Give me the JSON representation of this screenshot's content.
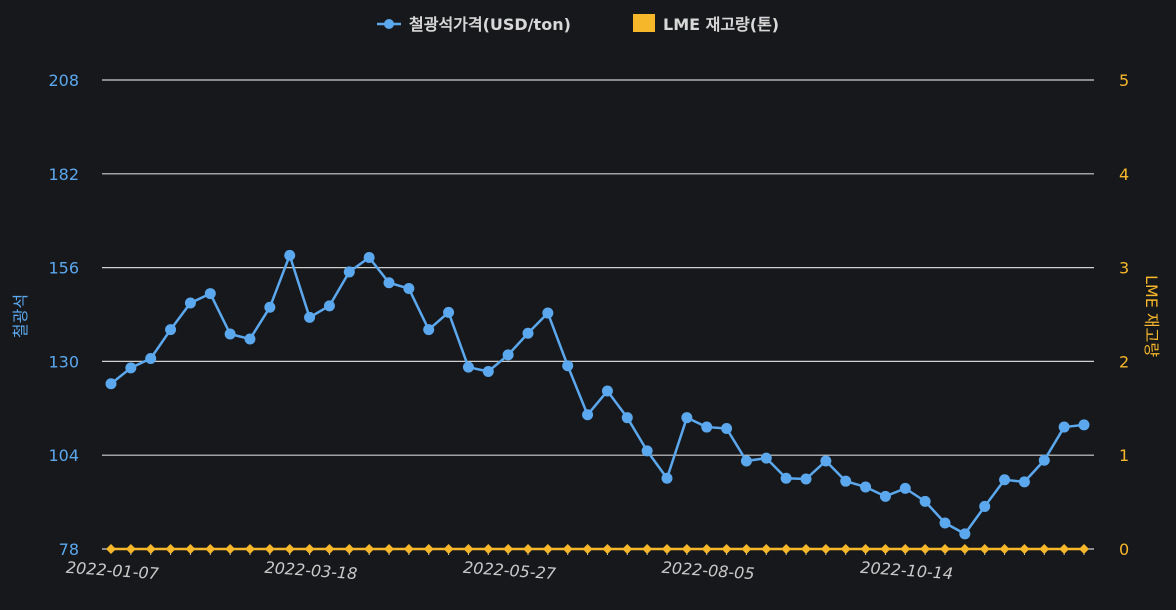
{
  "colors": {
    "background": "#17181b",
    "price_line": "#5ba8ee",
    "stock_line": "#f7b72b",
    "grid": "#d0d0d0",
    "x_tick": "#c9c9c9"
  },
  "chart_data": {
    "type": "line",
    "legend_position": "top-center",
    "grid": true,
    "y_left": {
      "label": "철광석",
      "ticks": [
        78,
        104,
        130,
        156,
        182,
        208
      ],
      "range": [
        78,
        208
      ]
    },
    "y_right": {
      "label": "LME 재고량",
      "ticks": [
        0,
        1,
        2,
        3,
        4,
        5
      ],
      "range": [
        0,
        5
      ]
    },
    "x_tick_labels": [
      "2022-01-07",
      "2022-03-18",
      "2022-05-27",
      "2022-08-05",
      "2022-10-14"
    ],
    "x": [
      "2022-01-07",
      "2022-01-14",
      "2022-01-21",
      "2022-01-28",
      "2022-02-04",
      "2022-02-11",
      "2022-02-18",
      "2022-02-25",
      "2022-03-04",
      "2022-03-11",
      "2022-03-18",
      "2022-03-25",
      "2022-04-01",
      "2022-04-08",
      "2022-04-15",
      "2022-04-22",
      "2022-04-29",
      "2022-05-06",
      "2022-05-13",
      "2022-05-20",
      "2022-05-27",
      "2022-06-03",
      "2022-06-10",
      "2022-06-17",
      "2022-06-24",
      "2022-07-01",
      "2022-07-08",
      "2022-07-15",
      "2022-07-22",
      "2022-07-29",
      "2022-08-05",
      "2022-08-12",
      "2022-08-19",
      "2022-08-26",
      "2022-09-02",
      "2022-09-09",
      "2022-09-16",
      "2022-09-23",
      "2022-09-30",
      "2022-10-07",
      "2022-10-14",
      "2022-10-21",
      "2022-10-28",
      "2022-11-04",
      "2022-11-11",
      "2022-11-18",
      "2022-11-25",
      "2022-12-02",
      "2022-12-09",
      "2022-12-16"
    ],
    "series": [
      {
        "name": "철광석가격(USD/ton)",
        "axis": "left",
        "values": [
          123.8,
          128.2,
          130.8,
          138.8,
          146.2,
          148.8,
          137.6,
          136.2,
          145.0,
          159.4,
          142.2,
          145.4,
          154.8,
          158.8,
          151.8,
          150.2,
          138.8,
          143.6,
          128.4,
          127.2,
          131.8,
          137.8,
          143.4,
          128.8,
          115.2,
          121.8,
          114.4,
          105.2,
          97.6,
          114.4,
          111.8,
          111.4,
          102.4,
          103.2,
          97.6,
          97.4,
          102.4,
          96.8,
          95.2,
          92.6,
          94.8,
          91.2,
          85.2,
          82.2,
          89.8,
          97.2,
          96.6,
          102.6,
          111.8,
          112.4
        ]
      },
      {
        "name": "LME 재고량(톤)",
        "axis": "right",
        "values": [
          0,
          0,
          0,
          0,
          0,
          0,
          0,
          0,
          0,
          0,
          0,
          0,
          0,
          0,
          0,
          0,
          0,
          0,
          0,
          0,
          0,
          0,
          0,
          0,
          0,
          0,
          0,
          0,
          0,
          0,
          0,
          0,
          0,
          0,
          0,
          0,
          0,
          0,
          0,
          0,
          0,
          0,
          0,
          0,
          0,
          0,
          0,
          0,
          0,
          0
        ]
      }
    ]
  }
}
